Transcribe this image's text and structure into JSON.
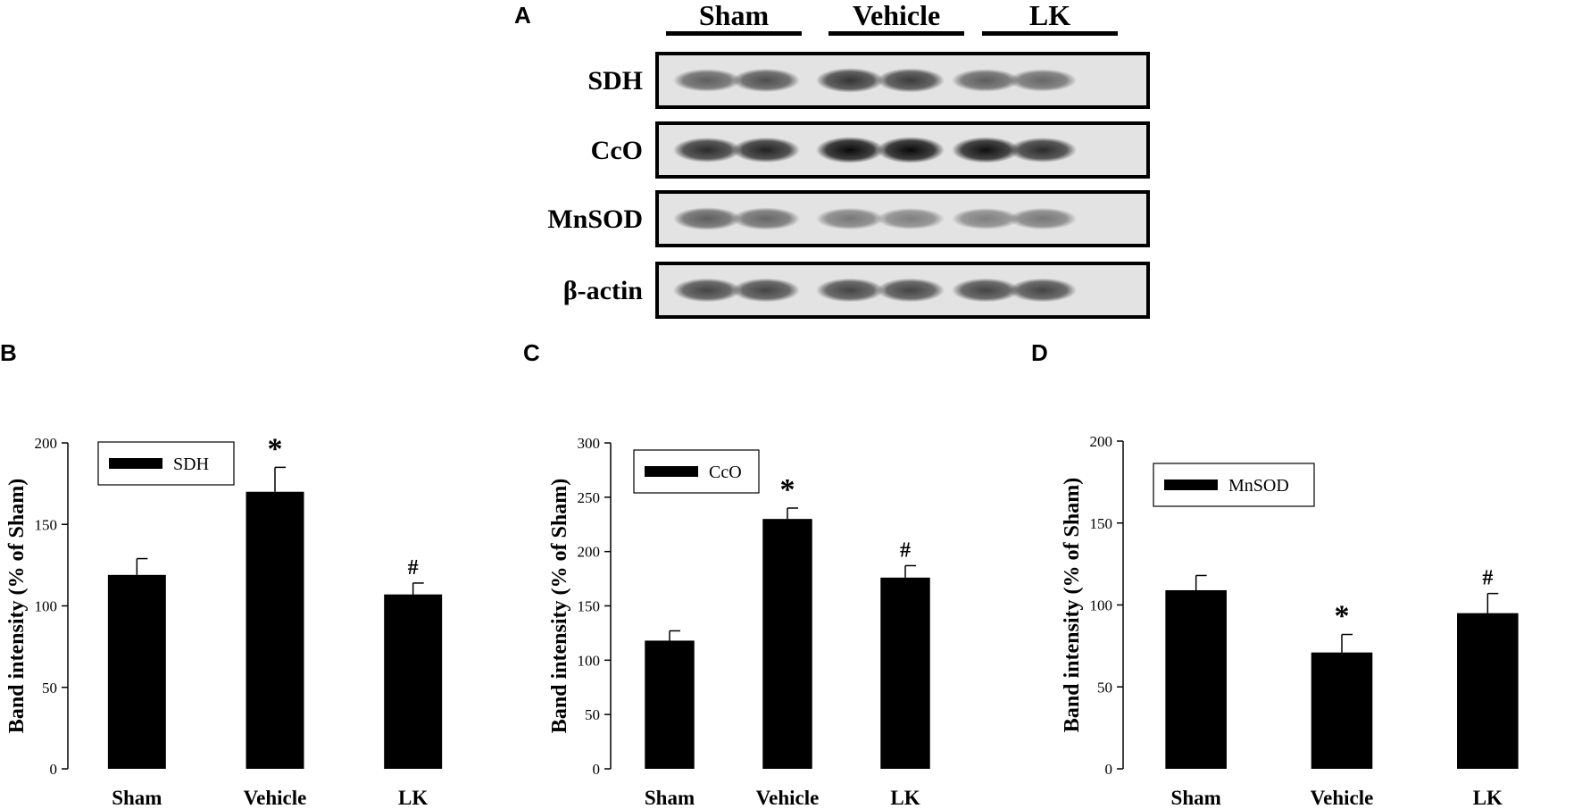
{
  "panels": {
    "a": "A",
    "b": "B",
    "c": "C",
    "d": "D"
  },
  "blot": {
    "groups": [
      "Sham",
      "Vehicle",
      "LK"
    ],
    "rows": [
      {
        "label": "SDH",
        "intensity": [
          0.45,
          0.55,
          0.7,
          0.65,
          0.45,
          0.4
        ],
        "tone": "#9a9a9a"
      },
      {
        "label": "CcO",
        "intensity": [
          0.75,
          0.8,
          0.95,
          0.95,
          0.9,
          0.75
        ],
        "tone": "#5a5a5a"
      },
      {
        "label": "MnSOD",
        "intensity": [
          0.45,
          0.4,
          0.3,
          0.25,
          0.25,
          0.3
        ],
        "tone": "#a0a0a0"
      },
      {
        "label": "β-actin",
        "intensity": [
          0.6,
          0.6,
          0.6,
          0.6,
          0.6,
          0.6
        ],
        "tone": "#808080"
      }
    ]
  },
  "chart_data": [
    {
      "type": "bar",
      "categories": [
        "Sham",
        "Vehicle",
        "LK"
      ],
      "series": [
        {
          "name": "SDH",
          "values": [
            119,
            170,
            107
          ],
          "error": [
            10,
            15,
            7
          ]
        }
      ],
      "annotations": [
        "",
        "*",
        "#"
      ],
      "ylabel": "Band intensity (% of Sham)",
      "ylim": [
        0,
        200
      ],
      "yticks": [
        0,
        50,
        100,
        150,
        200
      ],
      "legend": "top-left",
      "color": "#000000"
    },
    {
      "type": "bar",
      "categories": [
        "Sham",
        "Vehicle",
        "LK"
      ],
      "series": [
        {
          "name": "CcO",
          "values": [
            118,
            230,
            176
          ],
          "error": [
            9,
            10,
            11
          ]
        }
      ],
      "annotations": [
        "",
        "*",
        "#"
      ],
      "ylabel": "Band intensity (% of Sham)",
      "ylim": [
        0,
        300
      ],
      "yticks": [
        0,
        50,
        100,
        150,
        200,
        250,
        300
      ],
      "legend": "top-left",
      "color": "#000000"
    },
    {
      "type": "bar",
      "categories": [
        "Sham",
        "Vehicle",
        "LK"
      ],
      "series": [
        {
          "name": "MnSOD",
          "values": [
            109,
            71,
            95
          ],
          "error": [
            9,
            11,
            12
          ]
        }
      ],
      "annotations": [
        "",
        "*",
        "#"
      ],
      "ylabel": "Band intensity (% of Sham)",
      "ylim": [
        0,
        200
      ],
      "yticks": [
        0,
        50,
        100,
        150,
        200
      ],
      "legend": "top-left",
      "color": "#000000"
    }
  ]
}
